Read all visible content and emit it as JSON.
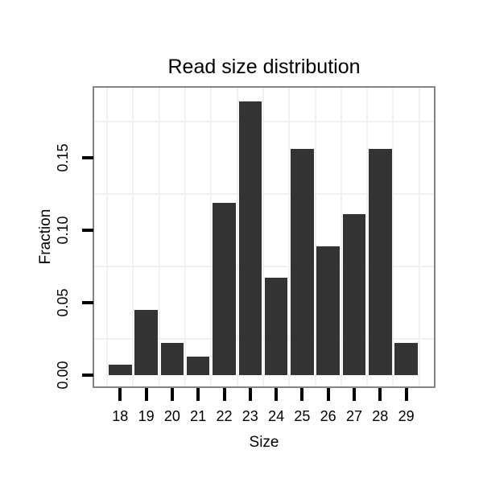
{
  "chart_data": {
    "type": "bar",
    "title": "Read size distribution",
    "xlabel": "Size",
    "ylabel": "Fraction",
    "categories": [
      "18",
      "19",
      "20",
      "21",
      "22",
      "23",
      "24",
      "25",
      "26",
      "27",
      "28",
      "29"
    ],
    "values": [
      0.007,
      0.045,
      0.022,
      0.013,
      0.119,
      0.189,
      0.067,
      0.156,
      0.089,
      0.111,
      0.156,
      0.022
    ],
    "y_tick_labels": [
      "0.00",
      "0.05",
      "0.10",
      "0.15"
    ],
    "y_tick_values": [
      0.0,
      0.05,
      0.1,
      0.15
    ],
    "ylim": [
      0,
      0.2
    ],
    "legend": "none",
    "grid": {
      "horizontal_line_values": [
        0.025,
        0.075,
        0.125,
        0.175
      ],
      "vertical_lines": "between-categories"
    },
    "colors": {
      "bar_fill": "#333333",
      "panel_border": "#848484",
      "gridline": "#f0f0f0",
      "tick": "#000000",
      "text": "#000000",
      "background": "#ffffff"
    }
  }
}
